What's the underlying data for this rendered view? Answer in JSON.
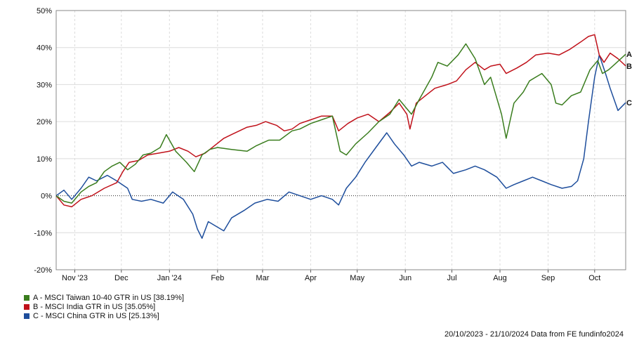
{
  "chart_data": {
    "type": "line",
    "ylim": [
      -20,
      50
    ],
    "y_ticks": [
      {
        "value": 50,
        "label": "50%"
      },
      {
        "value": 40,
        "label": "40%"
      },
      {
        "value": 30,
        "label": "30%"
      },
      {
        "value": 20,
        "label": "20%"
      },
      {
        "value": 10,
        "label": "10%"
      },
      {
        "value": 0,
        "label": "0%"
      },
      {
        "value": -10,
        "label": "-10%"
      },
      {
        "value": -20,
        "label": "-20%"
      }
    ],
    "xlim": [
      "2023-10-20",
      "2024-10-21"
    ],
    "x_ticks": [
      {
        "date": "2023-11-01",
        "label": "Nov '23"
      },
      {
        "date": "2023-12-01",
        "label": "Dec"
      },
      {
        "date": "2024-01-01",
        "label": "Jan '24"
      },
      {
        "date": "2024-02-01",
        "label": "Feb"
      },
      {
        "date": "2024-03-01",
        "label": "Mar"
      },
      {
        "date": "2024-04-01",
        "label": "Apr"
      },
      {
        "date": "2024-05-01",
        "label": "May"
      },
      {
        "date": "2024-06-01",
        "label": "Jun"
      },
      {
        "date": "2024-07-01",
        "label": "Jul"
      },
      {
        "date": "2024-08-01",
        "label": "Aug"
      },
      {
        "date": "2024-09-01",
        "label": "Sep"
      },
      {
        "date": "2024-10-01",
        "label": "Oct"
      }
    ],
    "grid": true,
    "zero_line": "dotted",
    "legend_position": "bottom-left",
    "series": [
      {
        "tag": "A",
        "legend": "A - MSCI Taiwan 10-40 GTR in US [38.19%]",
        "color": "#3a7d1e",
        "points": [
          [
            "2023-10-20",
            0
          ],
          [
            "2023-10-25",
            -1.5
          ],
          [
            "2023-10-30",
            -2
          ],
          [
            "2023-11-05",
            1
          ],
          [
            "2023-11-10",
            2.5
          ],
          [
            "2023-11-15",
            3.5
          ],
          [
            "2023-11-20",
            6.5
          ],
          [
            "2023-11-25",
            8
          ],
          [
            "2023-11-30",
            9
          ],
          [
            "2023-12-05",
            7
          ],
          [
            "2023-12-10",
            8.5
          ],
          [
            "2023-12-15",
            11
          ],
          [
            "2023-12-20",
            11.5
          ],
          [
            "2023-12-26",
            13
          ],
          [
            "2023-12-30",
            16.5
          ],
          [
            "2024-01-05",
            12
          ],
          [
            "2024-01-12",
            9
          ],
          [
            "2024-01-17",
            6.5
          ],
          [
            "2024-01-22",
            11
          ],
          [
            "2024-01-27",
            12.5
          ],
          [
            "2024-02-01",
            13
          ],
          [
            "2024-02-10",
            12.5
          ],
          [
            "2024-02-20",
            12
          ],
          [
            "2024-02-26",
            13.5
          ],
          [
            "2024-03-05",
            15
          ],
          [
            "2024-03-12",
            15
          ],
          [
            "2024-03-20",
            17.5
          ],
          [
            "2024-03-25",
            18
          ],
          [
            "2024-04-01",
            19.5
          ],
          [
            "2024-04-08",
            20.5
          ],
          [
            "2024-04-15",
            21.5
          ],
          [
            "2024-04-20",
            12
          ],
          [
            "2024-04-24",
            11
          ],
          [
            "2024-04-30",
            14
          ],
          [
            "2024-05-08",
            17
          ],
          [
            "2024-05-15",
            20
          ],
          [
            "2024-05-22",
            22
          ],
          [
            "2024-05-28",
            26
          ],
          [
            "2024-06-01",
            24
          ],
          [
            "2024-06-05",
            22
          ],
          [
            "2024-06-10",
            26
          ],
          [
            "2024-06-18",
            32
          ],
          [
            "2024-06-22",
            36
          ],
          [
            "2024-06-28",
            35
          ],
          [
            "2024-07-05",
            38
          ],
          [
            "2024-07-10",
            41
          ],
          [
            "2024-07-16",
            37
          ],
          [
            "2024-07-22",
            30
          ],
          [
            "2024-07-26",
            32
          ],
          [
            "2024-08-02",
            22
          ],
          [
            "2024-08-05",
            15.5
          ],
          [
            "2024-08-10",
            25
          ],
          [
            "2024-08-16",
            28
          ],
          [
            "2024-08-20",
            31
          ],
          [
            "2024-08-28",
            33
          ],
          [
            "2024-09-03",
            30
          ],
          [
            "2024-09-06",
            25
          ],
          [
            "2024-09-10",
            24.5
          ],
          [
            "2024-09-16",
            27
          ],
          [
            "2024-09-22",
            28
          ],
          [
            "2024-09-28",
            34
          ],
          [
            "2024-10-03",
            36.5
          ],
          [
            "2024-10-06",
            33
          ],
          [
            "2024-10-10",
            34
          ],
          [
            "2024-10-14",
            35.5
          ],
          [
            "2024-10-21",
            38.2
          ]
        ]
      },
      {
        "tag": "B",
        "legend": "B - MSCI India GTR in US [35.05%]",
        "color": "#c0111a",
        "points": [
          [
            "2023-10-20",
            0
          ],
          [
            "2023-10-25",
            -2.5
          ],
          [
            "2023-10-30",
            -3
          ],
          [
            "2023-11-05",
            -1
          ],
          [
            "2023-11-12",
            0
          ],
          [
            "2023-11-20",
            2
          ],
          [
            "2023-11-28",
            3.5
          ],
          [
            "2023-12-02",
            6.5
          ],
          [
            "2023-12-06",
            9
          ],
          [
            "2023-12-12",
            9.5
          ],
          [
            "2023-12-18",
            11
          ],
          [
            "2023-12-25",
            11.5
          ],
          [
            "2024-01-01",
            12
          ],
          [
            "2024-01-07",
            13
          ],
          [
            "2024-01-13",
            12
          ],
          [
            "2024-01-18",
            10.5
          ],
          [
            "2024-01-24",
            11.5
          ],
          [
            "2024-01-30",
            13.5
          ],
          [
            "2024-02-05",
            15.5
          ],
          [
            "2024-02-10",
            16.5
          ],
          [
            "2024-02-15",
            17.5
          ],
          [
            "2024-02-20",
            18.5
          ],
          [
            "2024-02-26",
            19
          ],
          [
            "2024-03-03",
            20
          ],
          [
            "2024-03-10",
            19
          ],
          [
            "2024-03-15",
            17.5
          ],
          [
            "2024-03-20",
            18
          ],
          [
            "2024-03-25",
            19.5
          ],
          [
            "2024-04-01",
            20.5
          ],
          [
            "2024-04-08",
            21.5
          ],
          [
            "2024-04-15",
            21.5
          ],
          [
            "2024-04-19",
            17.5
          ],
          [
            "2024-04-25",
            19.5
          ],
          [
            "2024-05-01",
            21
          ],
          [
            "2024-05-08",
            22
          ],
          [
            "2024-05-15",
            20
          ],
          [
            "2024-05-22",
            22.5
          ],
          [
            "2024-05-28",
            25
          ],
          [
            "2024-06-02",
            22
          ],
          [
            "2024-06-04",
            18
          ],
          [
            "2024-06-08",
            25
          ],
          [
            "2024-06-14",
            27
          ],
          [
            "2024-06-20",
            29
          ],
          [
            "2024-06-28",
            30
          ],
          [
            "2024-07-04",
            31
          ],
          [
            "2024-07-10",
            34
          ],
          [
            "2024-07-16",
            36
          ],
          [
            "2024-07-22",
            34
          ],
          [
            "2024-07-26",
            35
          ],
          [
            "2024-08-01",
            35.5
          ],
          [
            "2024-08-05",
            33
          ],
          [
            "2024-08-12",
            34.5
          ],
          [
            "2024-08-18",
            36
          ],
          [
            "2024-08-24",
            38
          ],
          [
            "2024-09-01",
            38.5
          ],
          [
            "2024-09-08",
            38
          ],
          [
            "2024-09-15",
            39.5
          ],
          [
            "2024-09-22",
            41.5
          ],
          [
            "2024-09-27",
            43
          ],
          [
            "2024-10-01",
            43.5
          ],
          [
            "2024-10-04",
            38
          ],
          [
            "2024-10-07",
            36
          ],
          [
            "2024-10-11",
            38.5
          ],
          [
            "2024-10-16",
            37
          ],
          [
            "2024-10-21",
            35.05
          ]
        ]
      },
      {
        "tag": "C",
        "legend": "C - MSCI China GTR in US [25.13%]",
        "color": "#1e4e9c",
        "points": [
          [
            "2023-10-20",
            0
          ],
          [
            "2023-10-25",
            1.5
          ],
          [
            "2023-10-30",
            -1
          ],
          [
            "2023-11-05",
            2
          ],
          [
            "2023-11-10",
            5
          ],
          [
            "2023-11-15",
            4
          ],
          [
            "2023-11-22",
            5.5
          ],
          [
            "2023-11-28",
            4
          ],
          [
            "2023-12-05",
            2
          ],
          [
            "2023-12-08",
            -1
          ],
          [
            "2023-12-14",
            -1.5
          ],
          [
            "2023-12-20",
            -1
          ],
          [
            "2023-12-28",
            -2
          ],
          [
            "2024-01-03",
            1
          ],
          [
            "2024-01-10",
            -1
          ],
          [
            "2024-01-16",
            -5
          ],
          [
            "2024-01-19",
            -9
          ],
          [
            "2024-01-22",
            -11.5
          ],
          [
            "2024-01-26",
            -7
          ],
          [
            "2024-02-01",
            -8.5
          ],
          [
            "2024-02-05",
            -9.5
          ],
          [
            "2024-02-10",
            -6
          ],
          [
            "2024-02-18",
            -4
          ],
          [
            "2024-02-25",
            -2
          ],
          [
            "2024-03-04",
            -1
          ],
          [
            "2024-03-11",
            -1.5
          ],
          [
            "2024-03-18",
            1
          ],
          [
            "2024-03-25",
            0
          ],
          [
            "2024-04-01",
            -1
          ],
          [
            "2024-04-08",
            0
          ],
          [
            "2024-04-15",
            -1
          ],
          [
            "2024-04-19",
            -2.5
          ],
          [
            "2024-04-24",
            2
          ],
          [
            "2024-04-30",
            5
          ],
          [
            "2024-05-06",
            9
          ],
          [
            "2024-05-13",
            13
          ],
          [
            "2024-05-20",
            17
          ],
          [
            "2024-05-25",
            14
          ],
          [
            "2024-05-31",
            11
          ],
          [
            "2024-06-05",
            8
          ],
          [
            "2024-06-10",
            9
          ],
          [
            "2024-06-18",
            8
          ],
          [
            "2024-06-25",
            9
          ],
          [
            "2024-07-02",
            6
          ],
          [
            "2024-07-10",
            7
          ],
          [
            "2024-07-16",
            8
          ],
          [
            "2024-07-22",
            7
          ],
          [
            "2024-07-30",
            5
          ],
          [
            "2024-08-05",
            2
          ],
          [
            "2024-08-10",
            3
          ],
          [
            "2024-08-16",
            4
          ],
          [
            "2024-08-22",
            5
          ],
          [
            "2024-08-28",
            4
          ],
          [
            "2024-09-03",
            3
          ],
          [
            "2024-09-10",
            2
          ],
          [
            "2024-09-16",
            2.5
          ],
          [
            "2024-09-20",
            4
          ],
          [
            "2024-09-24",
            10
          ],
          [
            "2024-09-27",
            20
          ],
          [
            "2024-10-01",
            32
          ],
          [
            "2024-10-04",
            38
          ],
          [
            "2024-10-08",
            33
          ],
          [
            "2024-10-11",
            29
          ],
          [
            "2024-10-16",
            23
          ],
          [
            "2024-10-21",
            25.13
          ]
        ]
      }
    ]
  },
  "footer": "20/10/2023 - 21/10/2024 Data from FE fundinfo2024"
}
